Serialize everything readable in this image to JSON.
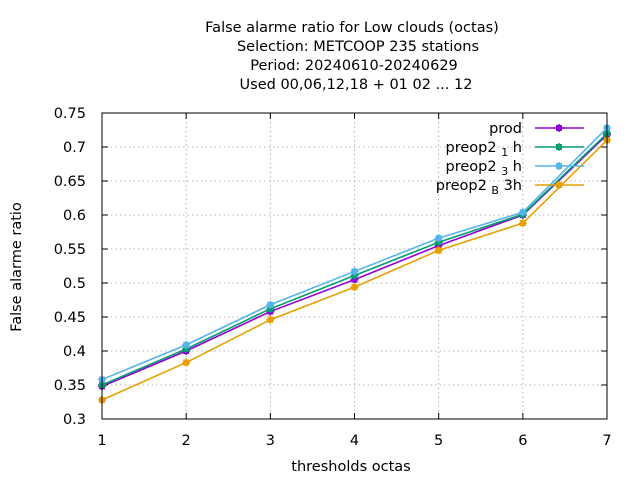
{
  "chart_data": {
    "type": "line",
    "title_lines": [
      "False alarme ratio  for Low clouds (octas)",
      "Selection: METCOOP    235 stations",
      "Period: 20240610-20240629",
      "Used  00,06,12,18 + 01 02 ... 12"
    ],
    "xlabel": "thresholds octas",
    "ylabel": "False alarme ratio",
    "x": [
      1,
      2,
      3,
      4,
      5,
      6,
      7
    ],
    "xlim": [
      1,
      7
    ],
    "ylim": [
      0.3,
      0.75
    ],
    "yticks": [
      "0.3",
      "0.35",
      "0.4",
      "0.45",
      "0.5",
      "0.55",
      "0.6",
      "0.65",
      "0.7",
      "0.75"
    ],
    "xticks": [
      "1",
      "2",
      "3",
      "4",
      "5",
      "6",
      "7"
    ],
    "grid": true,
    "legend_position": "top-right",
    "series": [
      {
        "name": "prod",
        "name_base": "prod",
        "name_sub": "",
        "name_suffix": "",
        "color": "#9400d3",
        "values": [
          0.348,
          0.4,
          0.458,
          0.505,
          0.555,
          0.6,
          0.718
        ]
      },
      {
        "name": "preop2 1 h",
        "name_base": "preop2 ",
        "name_sub": "1",
        "name_suffix": " h",
        "color": "#009e73",
        "values": [
          0.35,
          0.403,
          0.462,
          0.511,
          0.56,
          0.601,
          0.72
        ]
      },
      {
        "name": "preop2 3 h",
        "name_base": "preop2 ",
        "name_sub": "3",
        "name_suffix": " h",
        "color": "#56b4e9",
        "values": [
          0.358,
          0.409,
          0.468,
          0.517,
          0.566,
          0.604,
          0.728
        ]
      },
      {
        "name": "preop2 B 3h",
        "name_base": "preop2 ",
        "name_sub": "B",
        "name_suffix": " 3h",
        "color": "#e69f00",
        "values": [
          0.328,
          0.383,
          0.446,
          0.494,
          0.548,
          0.588,
          0.71
        ]
      }
    ]
  }
}
